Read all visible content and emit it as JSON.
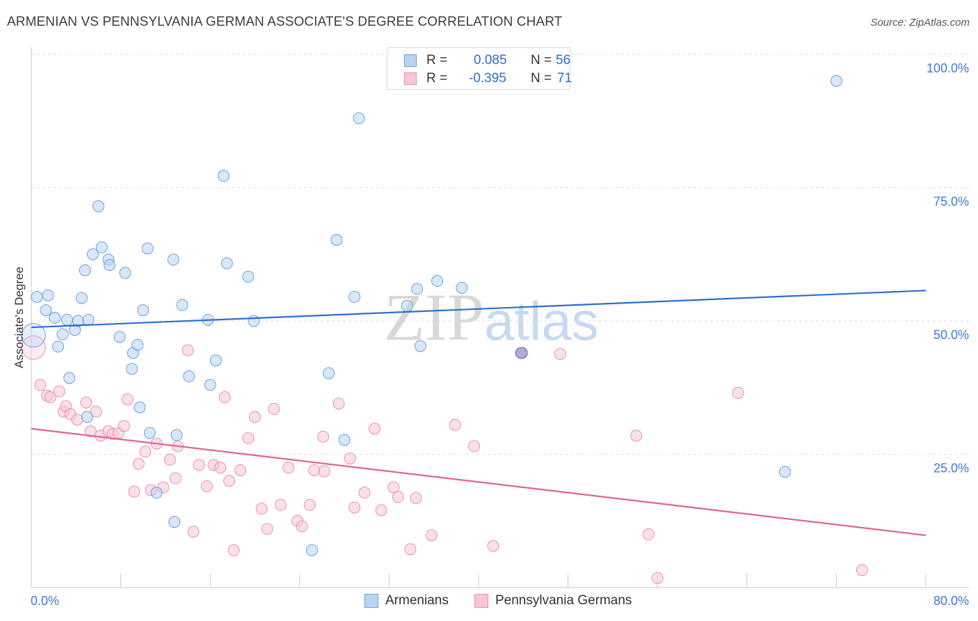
{
  "title": "ARMENIAN VS PENNSYLVANIA GERMAN ASSOCIATE'S DEGREE CORRELATION CHART",
  "source": "Source: ZipAtlas.com",
  "watermark": {
    "zip": "ZIP",
    "atlas": "atlas"
  },
  "legend": {
    "r_label": "R =",
    "n_label": "N =",
    "series": [
      {
        "r": "0.085",
        "n": "56"
      },
      {
        "r": "-0.395",
        "n": "71"
      }
    ]
  },
  "colors": {
    "armenians_fill": "#b8d3f5",
    "armenians_stroke": "#6d9ed8",
    "armenians_line": "#2a6fd1",
    "pg_fill": "#f8c6d6",
    "pg_stroke": "#e890ae",
    "pg_line": "#e0648f",
    "overlap_fill": "#a08cc0",
    "axis_text": "#3d7ad6"
  },
  "chart_data": {
    "type": "scatter",
    "title": "ARMENIAN VS PENNSYLVANIA GERMAN ASSOCIATE'S DEGREE CORRELATION CHART",
    "xlabel": "",
    "ylabel": "Associate's Degree",
    "xlim": [
      0,
      80
    ],
    "ylim": [
      0,
      100
    ],
    "x_tick_labels": [
      "0.0%",
      "80.0%"
    ],
    "y_tick_labels": [
      "100.0%",
      "75.0%",
      "50.0%",
      "25.0%"
    ],
    "y_ticks": [
      100,
      75,
      50,
      25
    ],
    "grid": true,
    "legend_position": "top-center",
    "series": [
      {
        "name": "Armenians",
        "r": 0.085,
        "n": 56,
        "trend": {
          "x": [
            0,
            80
          ],
          "y": [
            48.8,
            55.7
          ]
        },
        "points": [
          [
            0.5,
            54.5
          ],
          [
            1.5,
            54.8
          ],
          [
            1.3,
            52.0
          ],
          [
            2.1,
            50.6
          ],
          [
            2.4,
            45.2
          ],
          [
            2.8,
            47.5
          ],
          [
            3.2,
            50.2
          ],
          [
            3.4,
            39.3
          ],
          [
            3.9,
            48.3
          ],
          [
            4.2,
            50.0
          ],
          [
            4.5,
            54.3
          ],
          [
            4.8,
            59.5
          ],
          [
            5.1,
            50.2
          ],
          [
            5.5,
            62.5
          ],
          [
            6.0,
            71.5
          ],
          [
            6.3,
            63.8
          ],
          [
            6.9,
            61.5
          ],
          [
            7.0,
            60.5
          ],
          [
            7.9,
            47.0
          ],
          [
            8.4,
            59.0
          ],
          [
            9.1,
            44.0
          ],
          [
            9.5,
            45.5
          ],
          [
            9.7,
            33.8
          ],
          [
            10.0,
            52.0
          ],
          [
            10.4,
            63.6
          ],
          [
            10.6,
            29.0
          ],
          [
            11.2,
            17.8
          ],
          [
            12.7,
            61.5
          ],
          [
            12.8,
            12.3
          ],
          [
            13.0,
            28.6
          ],
          [
            13.5,
            53.0
          ],
          [
            14.1,
            39.6
          ],
          [
            15.8,
            50.2
          ],
          [
            16.5,
            42.6
          ],
          [
            17.2,
            77.2
          ],
          [
            17.5,
            60.8
          ],
          [
            19.4,
            58.3
          ],
          [
            19.9,
            50.0
          ],
          [
            25.1,
            7.0
          ],
          [
            26.6,
            40.2
          ],
          [
            27.3,
            65.2
          ],
          [
            28.0,
            27.7
          ],
          [
            28.9,
            54.5
          ],
          [
            29.3,
            88.0
          ],
          [
            33.6,
            52.8
          ],
          [
            34.5,
            56.0
          ],
          [
            34.8,
            45.3
          ],
          [
            36.3,
            57.5
          ],
          [
            38.5,
            56.2
          ],
          [
            43.9,
            44.0
          ],
          [
            67.4,
            21.7
          ],
          [
            72.0,
            95.0
          ],
          [
            0.2,
            47.3
          ],
          [
            5.0,
            32.0
          ],
          [
            9.0,
            41.0
          ],
          [
            16.0,
            38.0
          ]
        ]
      },
      {
        "name": "Pennsylvania Germans",
        "r": -0.395,
        "n": 71,
        "trend": {
          "x": [
            0,
            80
          ],
          "y": [
            29.8,
            9.8
          ]
        },
        "points": [
          [
            0.2,
            45.0
          ],
          [
            0.8,
            38.0
          ],
          [
            1.4,
            36.0
          ],
          [
            1.7,
            35.7
          ],
          [
            2.5,
            36.8
          ],
          [
            2.9,
            33.0
          ],
          [
            3.1,
            34.0
          ],
          [
            3.5,
            32.5
          ],
          [
            4.1,
            31.5
          ],
          [
            4.9,
            34.7
          ],
          [
            5.3,
            29.3
          ],
          [
            5.8,
            33.0
          ],
          [
            6.2,
            28.5
          ],
          [
            6.9,
            29.3
          ],
          [
            7.3,
            28.8
          ],
          [
            7.8,
            29.0
          ],
          [
            8.3,
            30.3
          ],
          [
            8.6,
            35.3
          ],
          [
            9.2,
            18.0
          ],
          [
            9.6,
            23.2
          ],
          [
            10.2,
            25.5
          ],
          [
            10.7,
            18.3
          ],
          [
            11.2,
            27.0
          ],
          [
            11.8,
            18.8
          ],
          [
            12.4,
            24.0
          ],
          [
            12.9,
            20.5
          ],
          [
            13.1,
            26.5
          ],
          [
            14.0,
            44.5
          ],
          [
            14.5,
            10.5
          ],
          [
            15.0,
            23.0
          ],
          [
            15.7,
            19.0
          ],
          [
            16.3,
            23.0
          ],
          [
            16.9,
            22.5
          ],
          [
            17.3,
            35.7
          ],
          [
            17.7,
            20.0
          ],
          [
            18.1,
            7.0
          ],
          [
            18.7,
            22.0
          ],
          [
            19.4,
            28.0
          ],
          [
            20.0,
            32.0
          ],
          [
            20.6,
            14.8
          ],
          [
            21.1,
            11.0
          ],
          [
            21.7,
            33.5
          ],
          [
            22.3,
            15.5
          ],
          [
            23.0,
            22.5
          ],
          [
            23.8,
            12.5
          ],
          [
            24.2,
            11.5
          ],
          [
            24.9,
            15.5
          ],
          [
            25.3,
            22.0
          ],
          [
            26.1,
            28.3
          ],
          [
            26.2,
            21.8
          ],
          [
            27.5,
            34.5
          ],
          [
            28.5,
            24.2
          ],
          [
            28.9,
            15.0
          ],
          [
            29.8,
            17.8
          ],
          [
            30.7,
            29.8
          ],
          [
            31.3,
            14.5
          ],
          [
            32.4,
            18.8
          ],
          [
            32.8,
            17.0
          ],
          [
            33.9,
            7.2
          ],
          [
            34.4,
            16.8
          ],
          [
            35.8,
            9.8
          ],
          [
            37.9,
            30.5
          ],
          [
            39.6,
            26.5
          ],
          [
            41.3,
            7.8
          ],
          [
            43.8,
            44.0
          ],
          [
            47.3,
            43.8
          ],
          [
            54.1,
            28.5
          ],
          [
            55.2,
            10.0
          ],
          [
            56.0,
            1.8
          ],
          [
            63.2,
            36.5
          ],
          [
            74.3,
            3.3
          ]
        ]
      }
    ]
  }
}
